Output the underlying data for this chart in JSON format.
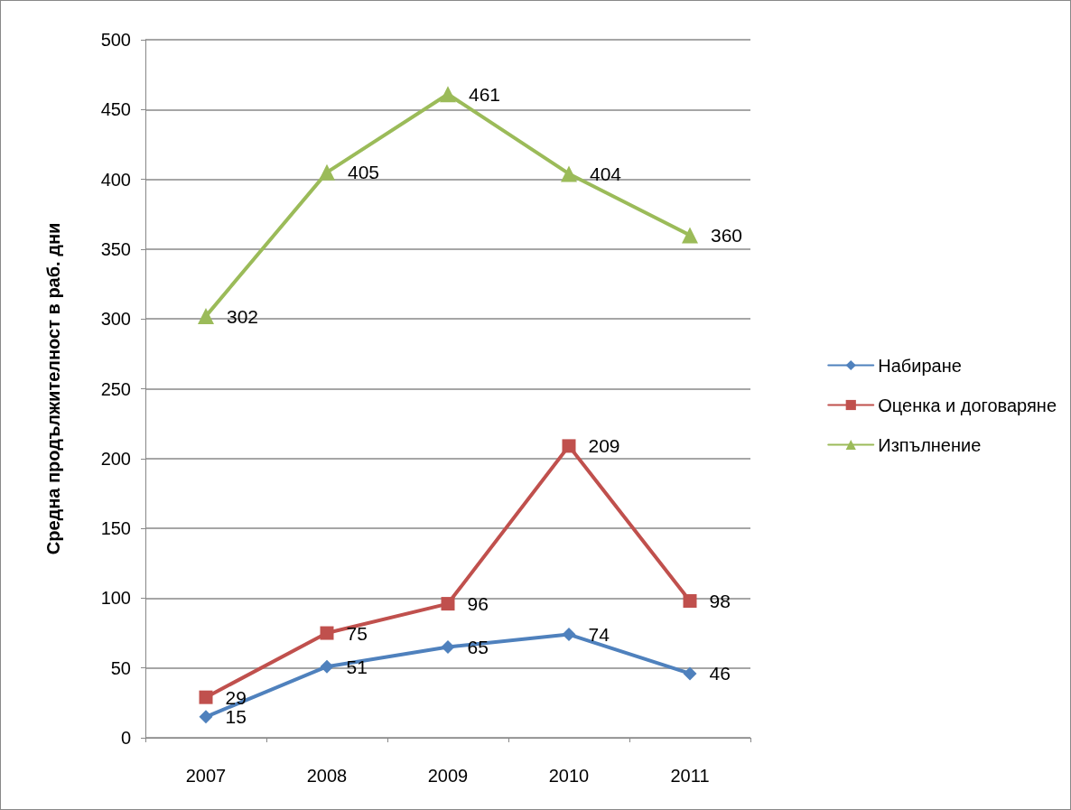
{
  "chart_data": {
    "type": "line",
    "ylabel": "Средна продължителност в раб. дни",
    "categories": [
      "2007",
      "2008",
      "2009",
      "2010",
      "2011"
    ],
    "series": [
      {
        "name": "Набиране",
        "color": "#4f81bd",
        "marker": "diamond",
        "values": [
          15,
          51,
          65,
          74,
          46
        ]
      },
      {
        "name": "Оценка и договаряне",
        "color": "#c0504d",
        "marker": "square",
        "values": [
          29,
          75,
          96,
          209,
          98
        ]
      },
      {
        "name": "Изпълнение",
        "color": "#9bbb59",
        "marker": "triangle",
        "values": [
          302,
          405,
          461,
          404,
          360
        ]
      }
    ],
    "ylim": [
      0,
      500
    ],
    "yticks": [
      0,
      50,
      100,
      150,
      200,
      250,
      300,
      350,
      400,
      450,
      500
    ],
    "grid": "y",
    "legend": "right",
    "data_labels": true,
    "line_style": "solid"
  }
}
